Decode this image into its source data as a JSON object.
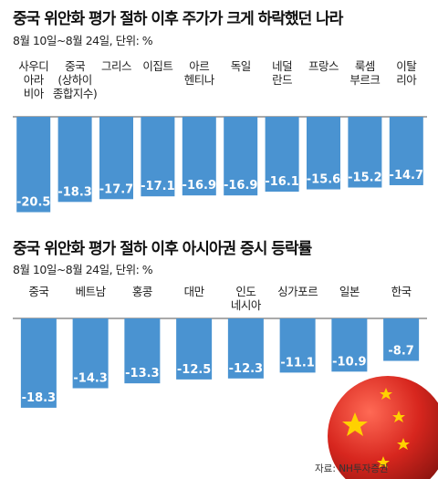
{
  "chart_data": [
    {
      "type": "bar",
      "title": "중국 위안화 평가 절하 이후 주가가 크게 하락했던 나라",
      "subtitle": "8월 10일~8월 24일, 단위: %",
      "categories": [
        [
          "사우디",
          "아라",
          "비아"
        ],
        [
          "중국",
          "(상하이",
          "종합지수)"
        ],
        [
          "그리스"
        ],
        [
          "이집트"
        ],
        [
          "아르",
          "헨티나"
        ],
        [
          "독일"
        ],
        [
          "네덜",
          "란드"
        ],
        [
          "프랑스"
        ],
        [
          "룩셈",
          "부르크"
        ],
        [
          "이탈",
          "리아"
        ]
      ],
      "values": [
        -20.5,
        -18.3,
        -17.7,
        -17.1,
        -16.9,
        -16.9,
        -16.1,
        -15.6,
        -15.2,
        -14.7
      ],
      "value_labels": [
        "-20.5",
        "-18.3",
        "-17.7",
        "-17.1",
        "-16.9",
        "-16.9",
        "-16.1",
        "-15.6",
        "-15.2",
        "-14.7"
      ],
      "bar_color": "#4a93d1"
    },
    {
      "type": "bar",
      "title": "중국 위안화 평가 절하 이후 아시아권 증시 등락률",
      "subtitle": "8월 10일~8월 24일, 단위: %",
      "categories": [
        [
          "중국"
        ],
        [
          "베트남"
        ],
        [
          "홍콩"
        ],
        [
          "대만"
        ],
        [
          "인도",
          "네시아"
        ],
        [
          "싱가포르"
        ],
        [
          "일본"
        ],
        [
          "한국"
        ]
      ],
      "values": [
        -18.3,
        -14.3,
        -13.3,
        -12.5,
        -12.3,
        -11.1,
        -10.9,
        -8.7
      ],
      "value_labels": [
        "-18.3",
        "-14.3",
        "-13.3",
        "-12.5",
        "-12.3",
        "-11.1",
        "-10.9",
        "-8.7"
      ],
      "bar_color": "#4a93d1"
    }
  ],
  "source": "자료: NH투자증권",
  "colors": {
    "bar": "#4a93d1",
    "axis": "#555555",
    "flag_red": "#d7261e",
    "flag_star": "#ffd100"
  }
}
